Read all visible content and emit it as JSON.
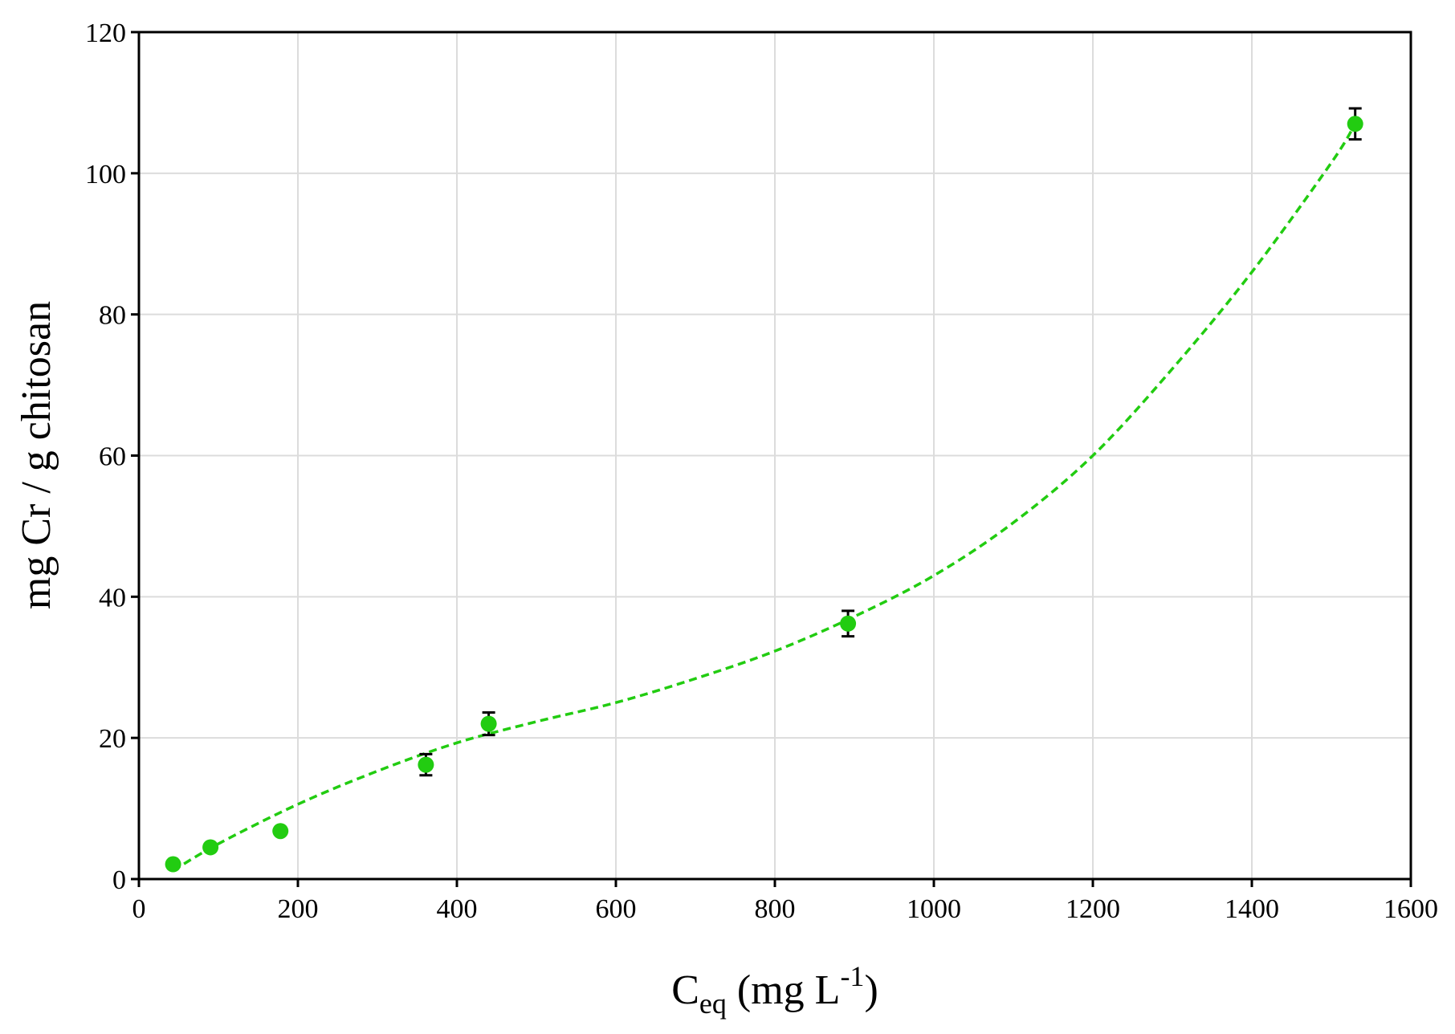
{
  "chart_data": {
    "type": "scatter",
    "xlabel_main": "C",
    "xlabel_sub": "eq",
    "xlabel_rest": " (mg L",
    "xlabel_sup": "-1",
    "xlabel_close": ")",
    "ylabel": "mg Cr / g chitosan",
    "xlim": [
      0,
      1600
    ],
    "ylim": [
      0,
      120
    ],
    "xticks": [
      0,
      200,
      400,
      600,
      800,
      1000,
      1200,
      1400,
      1600
    ],
    "yticks": [
      0,
      20,
      40,
      60,
      80,
      100,
      120
    ],
    "grid": true,
    "marker_color": "#22cc11",
    "fit_color": "#22cc11",
    "points": [
      {
        "x": 43,
        "y": 2.1,
        "err": 0
      },
      {
        "x": 90,
        "y": 4.5,
        "err": 0
      },
      {
        "x": 178,
        "y": 6.8,
        "err": 0
      },
      {
        "x": 361,
        "y": 16.2,
        "err": 1.5
      },
      {
        "x": 440,
        "y": 22.0,
        "err": 1.6
      },
      {
        "x": 892,
        "y": 36.2,
        "err": 1.8
      },
      {
        "x": 1530,
        "y": 107.0,
        "err": 2.2
      }
    ],
    "fit_curve": {
      "x": [
        43,
        100,
        200,
        300,
        400,
        500,
        600,
        700,
        800,
        900,
        1000,
        1100,
        1200,
        1300,
        1400,
        1500,
        1530
      ],
      "y": [
        1.2,
        5.0,
        10.6,
        15.3,
        19.3,
        22.3,
        25.0,
        28.4,
        32.3,
        37.2,
        43.0,
        50.5,
        60.0,
        72.3,
        86.0,
        101.5,
        107.0
      ]
    }
  }
}
